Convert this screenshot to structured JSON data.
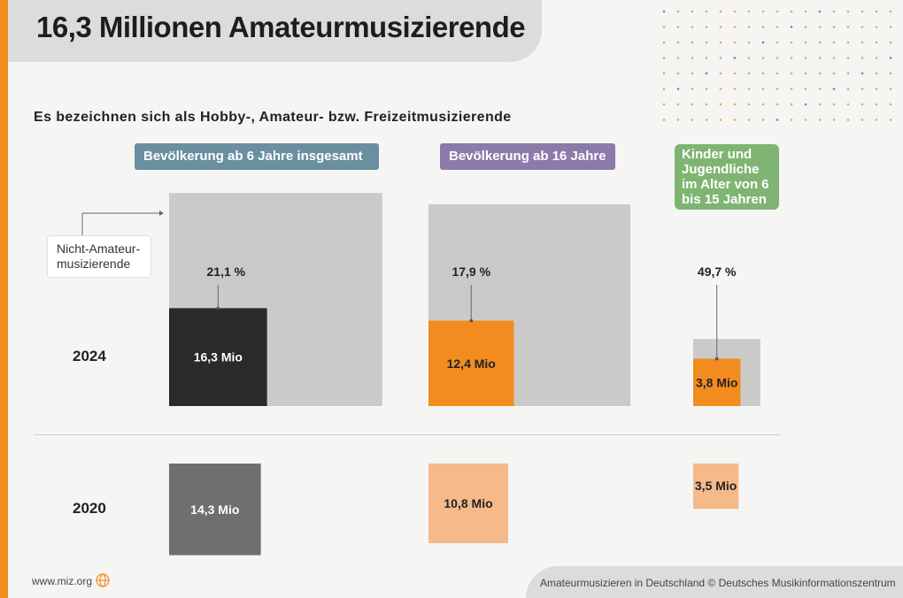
{
  "title": "16,3 Millionen Amateurmusizierende",
  "subtitle": "Es bezeichnen sich als Hobby-, Amateur- bzw. Freizeitmusizierende",
  "callout": {
    "line1": "Nicht-Amateur-",
    "line2": "musizierende"
  },
  "years": {
    "y2024": "2024",
    "y2020": "2020"
  },
  "footer": {
    "left": "www.miz.org",
    "right": "Amateurmusizieren in Deutschland  © Deutsches Musikinformationszentrum"
  },
  "colors": {
    "orange": "#f28c1f",
    "gray_bg": "#cacac9",
    "dark": "#2b2a29",
    "mid_gray": "#6f6f6f",
    "light_orange": "#f6b98a"
  },
  "chart_data": {
    "type": "area-proportional squares",
    "title": "16,3 Millionen Amateurmusizierende",
    "groups": [
      {
        "header": "Bevölkerung ab 6 Jahre insgesamt",
        "share_2024_pct": 21.1,
        "share_2024_label": "21,1 %",
        "value_2024": 16.3,
        "label_2024": "16,3 Mio",
        "value_2020": 14.3,
        "label_2020": "14,3 Mio",
        "total_population": 77.25
      },
      {
        "header": "Bevölkerung ab 16 Jahre",
        "share_2024_pct": 17.9,
        "share_2024_label": "17,9 %",
        "value_2024": 12.4,
        "label_2024": "12,4 Mio",
        "value_2020": 10.8,
        "label_2020": "10,8 Mio",
        "total_population": 69.27
      },
      {
        "header": "Kinder und Jugendliche im Alter von 6 bis 15 Jahren",
        "share_2024_pct": 49.7,
        "share_2024_label": "49,7 %",
        "value_2024": 3.8,
        "label_2024": "3,8 Mio",
        "value_2020": 3.5,
        "label_2020": "3,5 Mio",
        "total_population": 7.65
      }
    ]
  }
}
